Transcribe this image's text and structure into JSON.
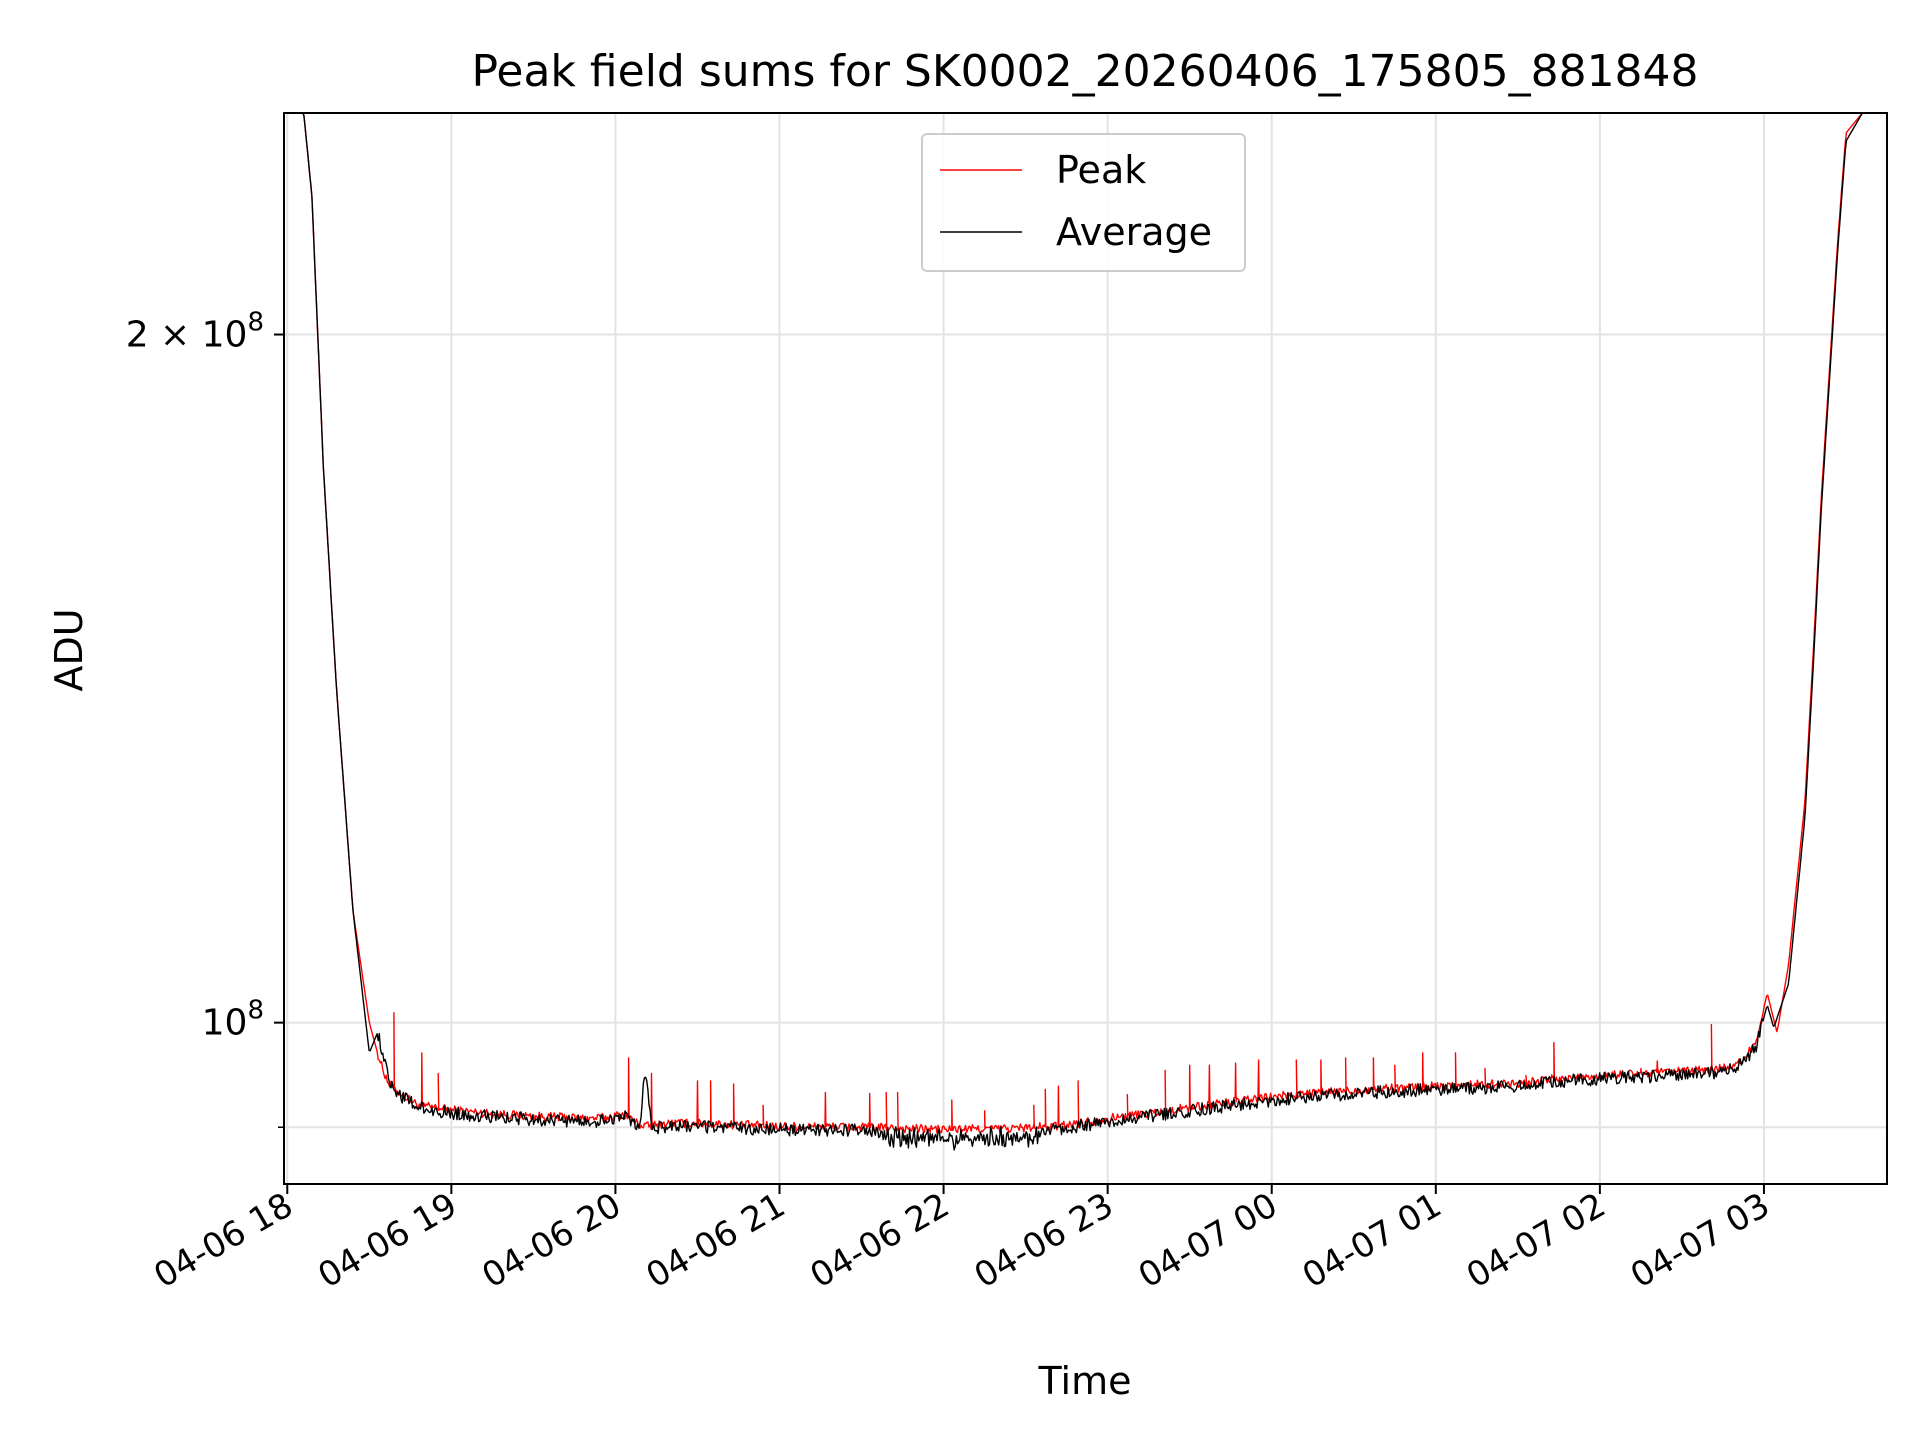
{
  "chart_data": {
    "type": "line",
    "title": "Peak field sums for SK0002_20260406_175805_881848",
    "xlabel": "Time",
    "ylabel": "ADU",
    "yscale": "log",
    "xlim_hours": [
      -0.02,
      9.75
    ],
    "ylim": [
      85000000,
      250000000
    ],
    "x_ticks": [
      {
        "label": "04-06 18",
        "hour": 0
      },
      {
        "label": "04-06 19",
        "hour": 1
      },
      {
        "label": "04-06 20",
        "hour": 2
      },
      {
        "label": "04-06 21",
        "hour": 3
      },
      {
        "label": "04-06 22",
        "hour": 4
      },
      {
        "label": "04-06 23",
        "hour": 5
      },
      {
        "label": "04-07 00",
        "hour": 6
      },
      {
        "label": "04-07 01",
        "hour": 7
      },
      {
        "label": "04-07 02",
        "hour": 8
      },
      {
        "label": "04-07 03",
        "hour": 9
      }
    ],
    "y_major_ticks": [
      {
        "value": 100000000,
        "base": "10",
        "exp": "8"
      },
      {
        "value": 200000000,
        "base": "2 × 10",
        "exp": "8"
      }
    ],
    "y_minor_ticks": [
      90000000
    ],
    "grid": true,
    "legend_position": "top-center",
    "series": [
      {
        "name": "Peak",
        "color": "#ff0000",
        "x_hours": [
          -0.01,
          0.1,
          0.15,
          0.22,
          0.3,
          0.4,
          0.5,
          0.55,
          0.58,
          0.62,
          0.7,
          0.8,
          0.9,
          1.0,
          1.2,
          1.5,
          1.7,
          1.85,
          1.95,
          2.05,
          2.15,
          2.2,
          2.35,
          2.6,
          2.8,
          3.0,
          3.5,
          4.0,
          4.4,
          4.7,
          5.0,
          5.3,
          5.6,
          6.0,
          6.3,
          6.6,
          7.0,
          7.5,
          7.8,
          8.0,
          8.4,
          8.7,
          8.85,
          8.95,
          9.02,
          9.08,
          9.15,
          9.25,
          9.3,
          9.35,
          9.45,
          9.5,
          9.6,
          9.74
        ],
        "y": [
          250000000,
          250000000,
          230000000,
          175000000,
          140000000,
          112000000,
          100000000,
          97000000,
          95500000,
          94000000,
          93000000,
          92000000,
          91800000,
          91600000,
          91300000,
          91000000,
          90900000,
          90800000,
          90900000,
          91200000,
          90200000,
          90100000,
          90400000,
          90300000,
          90200000,
          90100000,
          90000000,
          89800000,
          89900000,
          90100000,
          90800000,
          91400000,
          92000000,
          92800000,
          93200000,
          93500000,
          93800000,
          94100000,
          94600000,
          94800000,
          95100000,
          95400000,
          96000000,
          98000000,
          103000000,
          99000000,
          106000000,
          125000000,
          145000000,
          170000000,
          220000000,
          245000000,
          250000000,
          250000000
        ],
        "spikes": [
          [
            0.65,
            101000000
          ],
          [
            0.82,
            97000000
          ],
          [
            0.92,
            95000000
          ],
          [
            2.08,
            96500000
          ],
          [
            2.22,
            95000000
          ],
          [
            2.5,
            94300000
          ],
          [
            2.58,
            94300000
          ],
          [
            2.72,
            94000000
          ],
          [
            2.9,
            92000000
          ],
          [
            3.28,
            93200000
          ],
          [
            3.55,
            93100000
          ],
          [
            3.65,
            93200000
          ],
          [
            3.72,
            93200000
          ],
          [
            4.05,
            92500000
          ],
          [
            4.25,
            91500000
          ],
          [
            4.55,
            92000000
          ],
          [
            4.62,
            93500000
          ],
          [
            4.7,
            93800000
          ],
          [
            4.82,
            94300000
          ],
          [
            5.12,
            93000000
          ],
          [
            5.35,
            95300000
          ],
          [
            5.5,
            95800000
          ],
          [
            5.62,
            95800000
          ],
          [
            5.78,
            96000000
          ],
          [
            5.92,
            96300000
          ],
          [
            6.15,
            96300000
          ],
          [
            6.3,
            96300000
          ],
          [
            6.45,
            96500000
          ],
          [
            6.62,
            96500000
          ],
          [
            6.75,
            95800000
          ],
          [
            6.92,
            97000000
          ],
          [
            7.12,
            97000000
          ],
          [
            7.3,
            95500000
          ],
          [
            7.55,
            94800000
          ],
          [
            7.72,
            98000000
          ],
          [
            8.25,
            95500000
          ],
          [
            8.35,
            96200000
          ],
          [
            8.68,
            99800000
          ]
        ]
      },
      {
        "name": "Average",
        "color": "#000000",
        "x_hours": [
          -0.01,
          0.1,
          0.15,
          0.22,
          0.3,
          0.4,
          0.5,
          0.55,
          0.6,
          0.63,
          0.7,
          0.8,
          0.9,
          1.0,
          1.2,
          1.5,
          1.7,
          1.85,
          1.95,
          2.05,
          2.15,
          2.18,
          2.22,
          2.35,
          2.6,
          2.8,
          3.0,
          3.5,
          4.0,
          4.4,
          4.7,
          5.0,
          5.3,
          5.6,
          6.0,
          6.3,
          6.6,
          7.0,
          7.5,
          7.8,
          8.0,
          8.4,
          8.7,
          8.85,
          8.95,
          9.02,
          9.06,
          9.15,
          9.25,
          9.3,
          9.35,
          9.45,
          9.5,
          9.6,
          9.74
        ],
        "y": [
          250000000,
          250000000,
          230000000,
          175000000,
          140000000,
          112000000,
          97000000,
          99000000,
          96000000,
          94000000,
          92800000,
          91800000,
          91500000,
          91300000,
          91000000,
          90700000,
          90600000,
          90500000,
          90700000,
          91000000,
          89800000,
          95800000,
          89900000,
          90100000,
          90000000,
          89900000,
          89800000,
          89700000,
          89500000,
          89600000,
          89800000,
          90500000,
          91100000,
          91700000,
          92500000,
          92900000,
          93200000,
          93500000,
          93800000,
          94300000,
          94500000,
          94800000,
          95100000,
          95700000,
          97500000,
          101800000,
          99500000,
          104000000,
          123000000,
          143000000,
          168000000,
          218000000,
          243000000,
          250000000,
          250000000
        ]
      }
    ]
  }
}
